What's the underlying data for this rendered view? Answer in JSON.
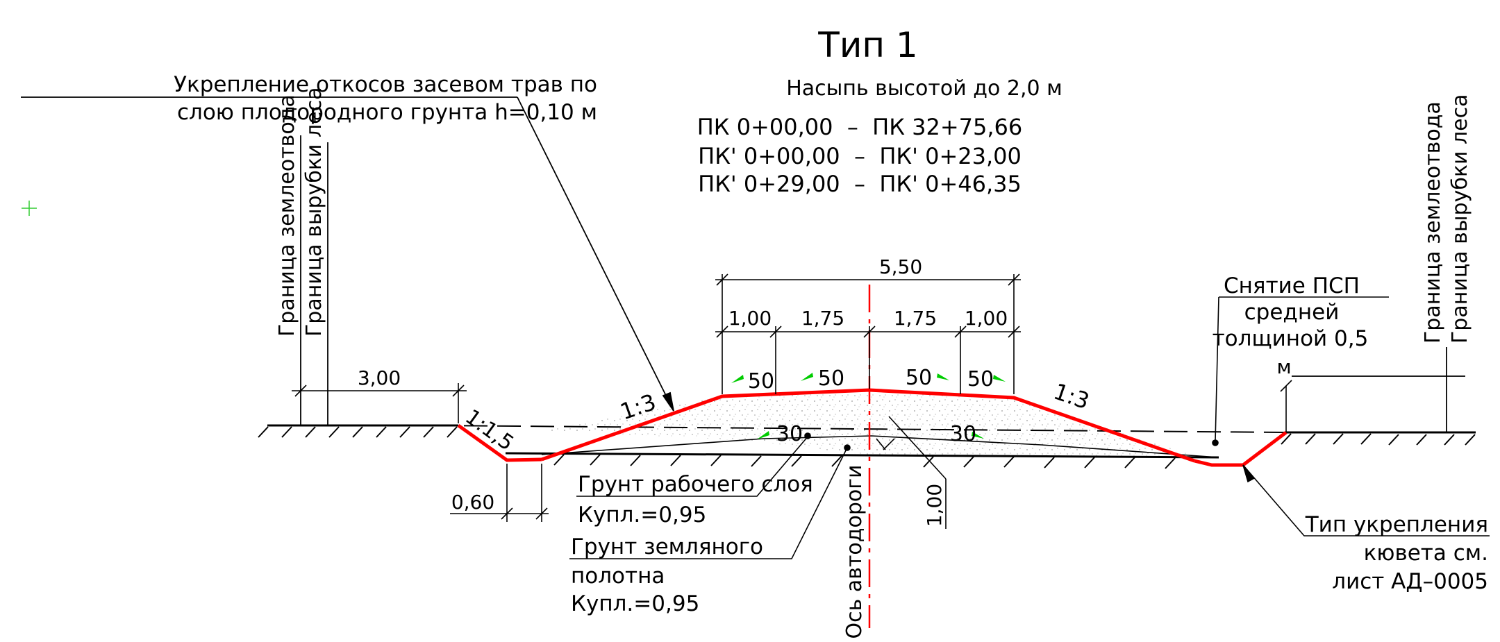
{
  "title": "Тип 1",
  "subtitle": "Насыпь высотой до 2,0 м",
  "stations": [
    "ПК 0+00,00  –  ПК 32+75,66",
    "ПК' 0+00,00  –  ПК' 0+23,00",
    "ПК' 0+29,00  –  ПК' 0+46,35"
  ],
  "notes": {
    "slope_strengthening_line1": "Укрепление откосов засевом трав по",
    "slope_strengthening_line2": "слою плодородного грунта h=0,10 м",
    "land_boundary": "Граница землеотвода",
    "clearing_boundary": "Граница вырубки леса",
    "psp_line1": "Снятие ПСП",
    "psp_line2": "средней",
    "psp_line3": "толщиной 0,5",
    "psp_line4": "м",
    "working_soil_line1": "Грунт рабочего слоя",
    "working_soil_line2": "Купл.=0,95",
    "subgrade_soil_line1": "Грунт земляного",
    "subgrade_soil_line2": "полотна",
    "subgrade_soil_line3": "Купл.=0,95",
    "axis": "Ось автодороги",
    "ditch_line1": "Тип укрепления",
    "ditch_line2": "кювета см.",
    "ditch_line3": "лист АД–0005"
  },
  "dimensions": {
    "total_width": "5,50",
    "shoulder_left": "1,00",
    "lane_left": "1,75",
    "lane_right": "1,75",
    "shoulder_right": "1,00",
    "berm": "3,00",
    "ditch_bottom": "0,60",
    "depth": "1,00"
  },
  "slopes": {
    "embankment_left": "1:3",
    "embankment_right": "1:3",
    "ditch": "1:1,5",
    "cross_slope_1": "50",
    "cross_slope_2": "50",
    "cross_slope_3": "50",
    "cross_slope_4": "50",
    "base_slope_left": "30",
    "base_slope_right": "30"
  },
  "colors": {
    "embankment_outline": "#ff0000",
    "axis_line": "#ff0000",
    "slope_arrow": "#00cc00",
    "lines": "#000000"
  }
}
